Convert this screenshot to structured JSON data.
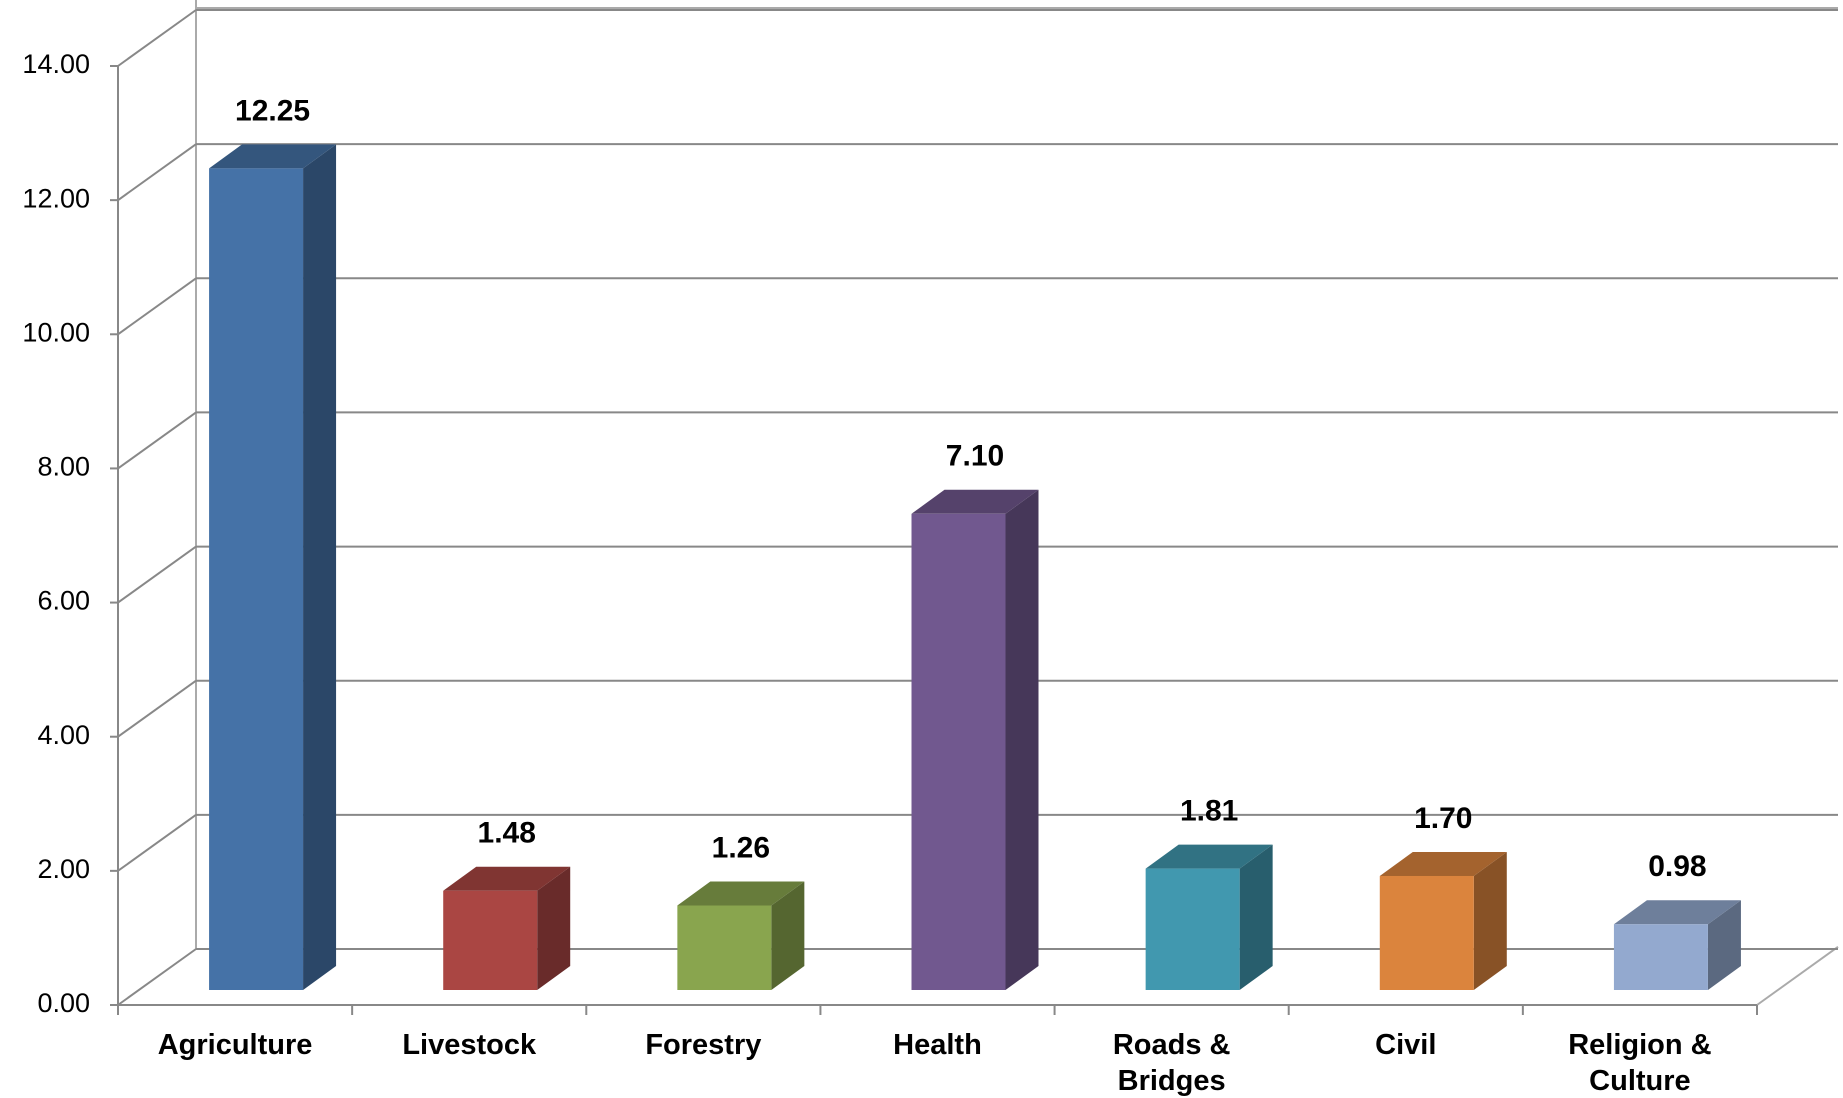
{
  "chart_data": {
    "type": "bar3d",
    "categories": [
      "Agriculture",
      "Livestock",
      "Forestry",
      "Health",
      "Roads & Bridges",
      "Civil",
      "Religion & Culture"
    ],
    "values": [
      12.25,
      1.48,
      1.26,
      7.1,
      1.81,
      1.7,
      0.98
    ],
    "value_labels": [
      "12.25",
      "1.48",
      "1.26",
      "7.10",
      "1.81",
      "1.70",
      "0.98"
    ],
    "colors": [
      "#4572a7",
      "#aa4643",
      "#89a54e",
      "#71588f",
      "#4198af",
      "#db843d",
      "#93a9cf"
    ],
    "ylim": [
      0,
      14
    ],
    "yticks": [
      {
        "value": 0,
        "label": "0.00"
      },
      {
        "value": 2,
        "label": "2.00"
      },
      {
        "value": 4,
        "label": "4.00"
      },
      {
        "value": 6,
        "label": "6.00"
      },
      {
        "value": 8,
        "label": "8.00"
      },
      {
        "value": 10,
        "label": "10.00"
      },
      {
        "value": 12,
        "label": "12.00"
      },
      {
        "value": 14,
        "label": "14.00"
      }
    ],
    "grid": true
  }
}
